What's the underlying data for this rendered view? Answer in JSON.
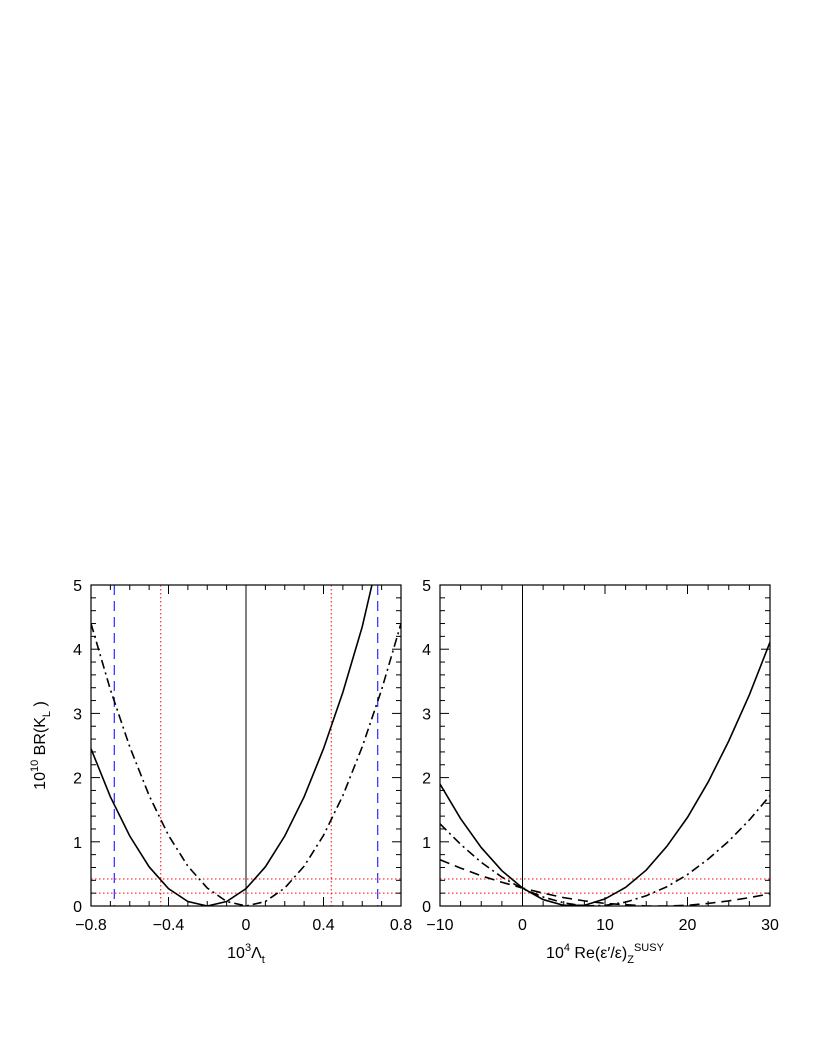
{
  "chart_data": [
    {
      "type": "line",
      "x_label": [
        {
          "text": "10"
        },
        {
          "text": "3",
          "shift": "super"
        },
        {
          "text": "Λ"
        },
        {
          "text": "t",
          "shift": "sub"
        }
      ],
      "y_label": [
        {
          "text": "10"
        },
        {
          "text": "10",
          "shift": "super"
        },
        {
          "text": " BR(K"
        },
        {
          "text": "L",
          "shift": "sub"
        },
        {
          "text": " )"
        }
      ],
      "xlim": [
        -0.8,
        0.8
      ],
      "xticks": [
        {
          "value": -0.8,
          "label": "−0.8"
        },
        {
          "value": -0.4,
          "label": "−0.4"
        },
        0,
        0.4,
        0.8
      ],
      "ylim": [
        0,
        5
      ],
      "yticks": [
        0,
        1,
        2,
        3,
        4,
        5
      ],
      "series": [
        {
          "color": "#000000",
          "style": "solid",
          "x": [
            -0.8,
            -0.7,
            -0.6,
            -0.5,
            -0.4,
            -0.3,
            -0.2,
            -0.1,
            0,
            0.1,
            0.2,
            0.3,
            0.4,
            0.5,
            0.6,
            0.65
          ],
          "values": [
            2.45,
            1.7,
            1.09,
            0.61,
            0.27,
            0.07,
            0,
            0.07,
            0.27,
            0.61,
            1.09,
            1.7,
            2.45,
            3.33,
            4.35,
            5.0
          ]
        },
        {
          "color": "#000000",
          "style": "dashdot",
          "x": [
            -0.8,
            -0.7,
            -0.6,
            -0.5,
            -0.4,
            -0.3,
            -0.2,
            -0.1,
            0,
            0.1,
            0.2,
            0.3,
            0.4,
            0.5,
            0.6,
            0.7,
            0.8
          ],
          "values": [
            4.4,
            3.37,
            2.48,
            1.72,
            1.1,
            0.62,
            0.28,
            0.07,
            0,
            0.07,
            0.28,
            0.62,
            1.1,
            1.72,
            2.48,
            3.37,
            4.4
          ]
        }
      ],
      "reference_lines": [
        {
          "axis": "x",
          "value": 0,
          "color": "#000000",
          "style": "solid"
        },
        {
          "axis": "x",
          "value": -0.44,
          "color": "#ff0000",
          "style": "dotted"
        },
        {
          "axis": "x",
          "value": 0.44,
          "color": "#ff0000",
          "style": "dotted"
        },
        {
          "axis": "x",
          "value": -0.68,
          "color": "#0000ff",
          "style": "dashed"
        },
        {
          "axis": "x",
          "value": 0.68,
          "color": "#0000ff",
          "style": "dashed"
        },
        {
          "axis": "y",
          "value": 0.42,
          "color": "#ff0000",
          "style": "dotted"
        },
        {
          "axis": "y",
          "value": 0.2,
          "color": "#ff0000",
          "style": "dotted"
        }
      ]
    },
    {
      "type": "line",
      "x_label": [
        {
          "text": "10"
        },
        {
          "text": "4",
          "shift": "super"
        },
        {
          "text": " Re(ε′/ε)"
        },
        {
          "text": "Z",
          "shift": "sub"
        },
        {
          "text": "SUSY",
          "shift": "super"
        }
      ],
      "xlim": [
        -10,
        30
      ],
      "xticks": [
        {
          "value": -10,
          "label": "−10"
        },
        0,
        10,
        20,
        30
      ],
      "ylim": [
        0,
        5
      ],
      "yticks": [
        0,
        1,
        2,
        3,
        4,
        5
      ],
      "series": [
        {
          "color": "#000000",
          "style": "solid",
          "x": [
            -10,
            -7.5,
            -5,
            -2.5,
            0,
            2.5,
            5,
            7.5,
            10,
            12.5,
            15,
            17.5,
            20,
            22.5,
            25,
            27.5,
            30
          ],
          "values": [
            1.9,
            1.36,
            0.91,
            0.55,
            0.28,
            0.1,
            0.01,
            0.01,
            0.11,
            0.29,
            0.56,
            0.93,
            1.38,
            1.93,
            2.57,
            3.29,
            4.11
          ]
        },
        {
          "color": "#000000",
          "style": "dashdot",
          "x": [
            -10,
            -7.5,
            -5,
            -2.5,
            0,
            2.5,
            5,
            7.5,
            10,
            12.5,
            15,
            17.5,
            20,
            22.5,
            25,
            27.5,
            30
          ],
          "values": [
            1.28,
            0.96,
            0.68,
            0.45,
            0.27,
            0.14,
            0.05,
            0.0,
            0.01,
            0.06,
            0.16,
            0.3,
            0.49,
            0.73,
            1.01,
            1.34,
            1.72
          ]
        },
        {
          "color": "#000000",
          "style": "dashed",
          "x": [
            -10,
            -7.5,
            -5,
            -2.5,
            0,
            2.5,
            5,
            7.5,
            10,
            12.5,
            15,
            17.5,
            20,
            22.5,
            25,
            27.5,
            30
          ],
          "values": [
            0.72,
            0.59,
            0.47,
            0.37,
            0.28,
            0.2,
            0.13,
            0.08,
            0.04,
            0.02,
            0.0,
            0.0,
            0.01,
            0.04,
            0.08,
            0.13,
            0.19
          ]
        }
      ],
      "reference_lines": [
        {
          "axis": "x",
          "value": 0,
          "color": "#000000",
          "style": "solid"
        },
        {
          "axis": "y",
          "value": 0.42,
          "color": "#ff0000",
          "style": "dotted"
        },
        {
          "axis": "y",
          "value": 0.2,
          "color": "#ff0000",
          "style": "dotted"
        }
      ]
    }
  ]
}
